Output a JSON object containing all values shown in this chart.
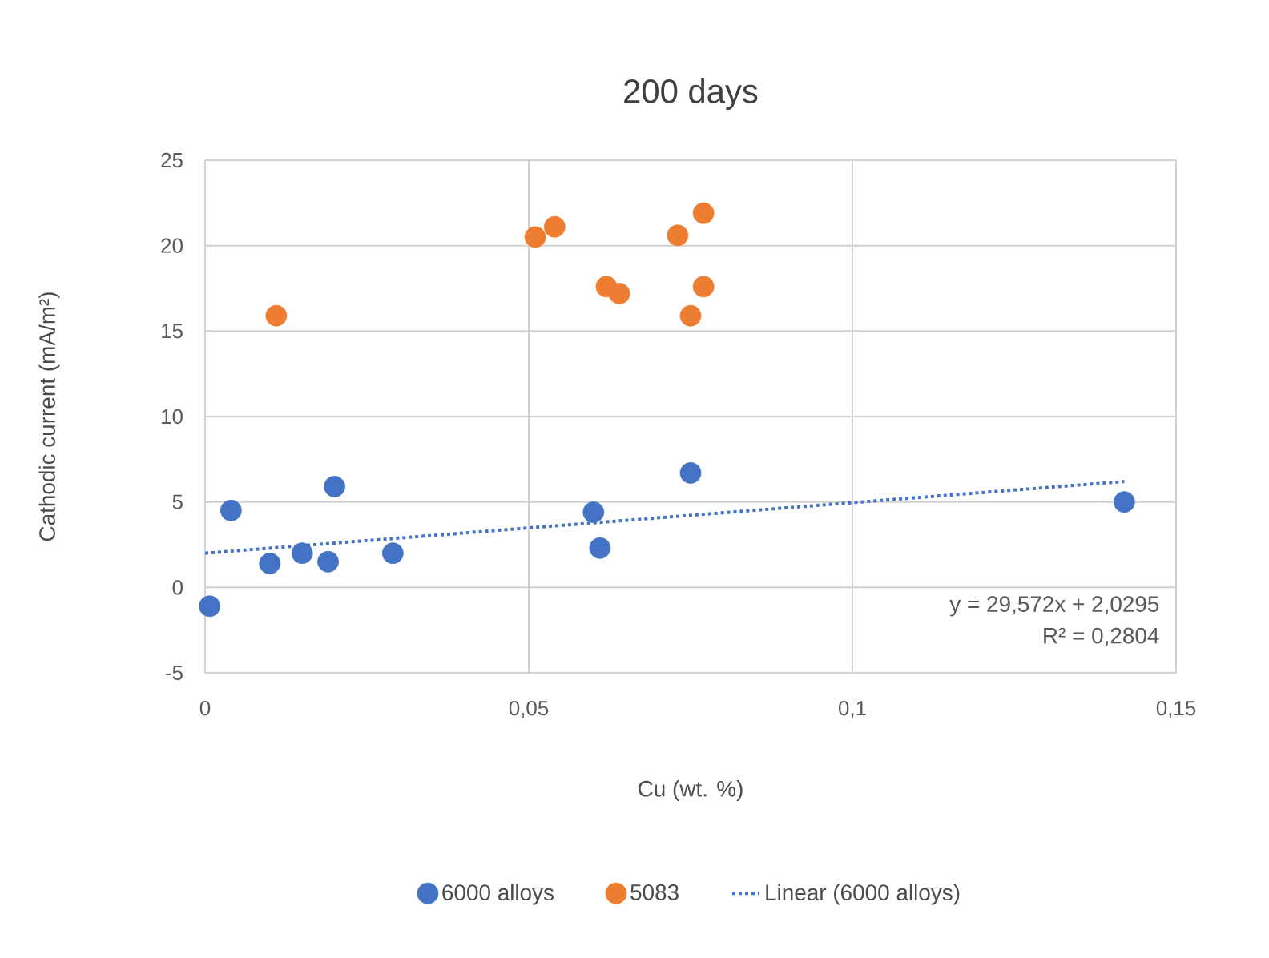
{
  "chart_data": {
    "type": "scatter",
    "title": "200 days",
    "xlabel": "Cu (wt. %)",
    "ylabel": "Cathodic current (mA/m²)",
    "xlim": [
      0,
      0.15
    ],
    "ylim": [
      -5,
      25
    ],
    "xticks": [
      0,
      {
        "value": 0.05,
        "label": "0,05"
      },
      {
        "value": 0.1,
        "label": "0,1"
      },
      {
        "value": 0.15,
        "label": "0,15"
      }
    ],
    "yticks": [
      -5,
      0,
      5,
      10,
      15,
      20,
      25
    ],
    "grid": true,
    "legend": "bottom",
    "marker": "circle",
    "series": [
      {
        "name": "6000 alloys",
        "color": "#4472c4",
        "x": [
          0.0007,
          0.004,
          0.01,
          0.015,
          0.019,
          0.02,
          0.029,
          0.06,
          0.061,
          0.075,
          0.142
        ],
        "values": [
          -1.1,
          4.5,
          1.4,
          2.0,
          1.5,
          5.9,
          2.0,
          4.4,
          2.3,
          6.7,
          5.0
        ]
      },
      {
        "name": "5083",
        "color": "#ed7d31",
        "x": [
          0.011,
          0.051,
          0.054,
          0.062,
          0.064,
          0.073,
          0.075,
          0.077,
          0.077
        ],
        "values": [
          15.9,
          20.5,
          21.1,
          17.6,
          17.2,
          20.6,
          15.9,
          21.9,
          17.6
        ]
      },
      {
        "name": "Linear (6000 alloys)",
        "type": "line",
        "color": "#4472c4",
        "marker": "none",
        "line_style": "dotted",
        "x": [
          0,
          0.142
        ],
        "values": [
          2.0,
          6.2
        ]
      }
    ],
    "annotations": [
      "y = 29,572x + 2,0295",
      "R² = 0,2804"
    ]
  }
}
